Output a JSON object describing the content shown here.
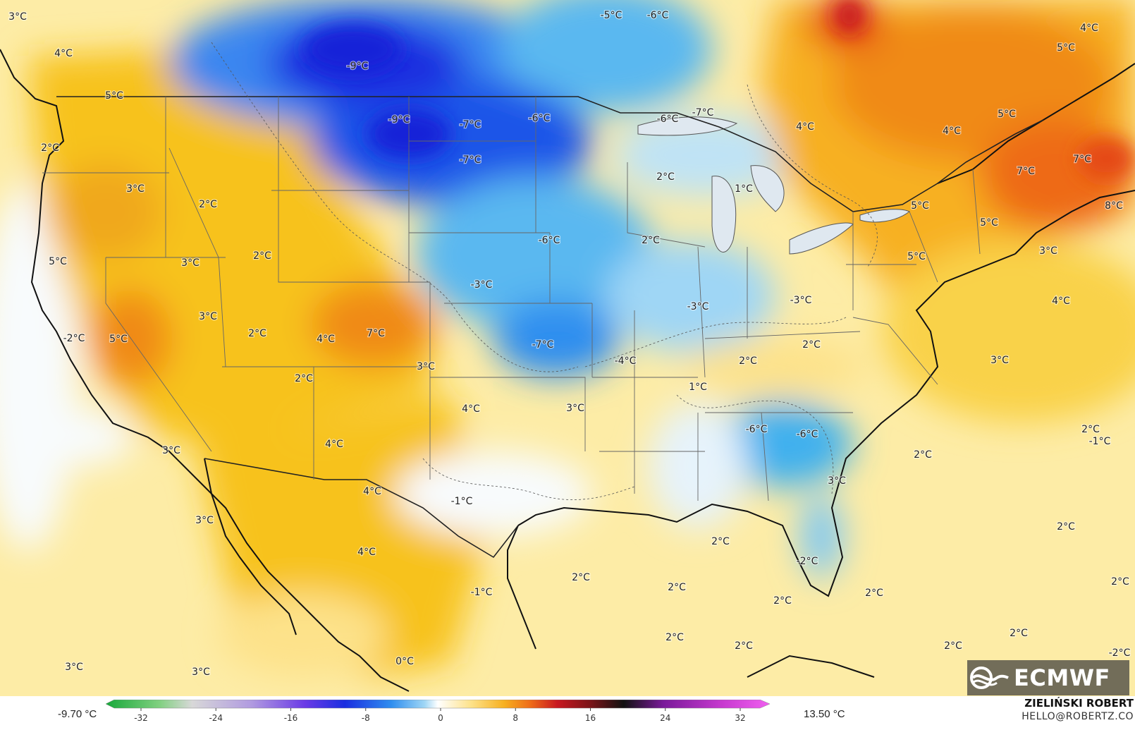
{
  "colors": {
    "ocean_warm": "#fdeca6",
    "land_warm": "#f7c21a",
    "hot": "#f08a18",
    "very_hot": "#e54a18",
    "extreme_hot": "#c81820",
    "neutral": "#f8fbfd",
    "cool": "#bfe3f5",
    "cold": "#3fb0ee",
    "very_cold": "#1f6cf0",
    "extreme_cold": "#1a2ee0",
    "border": "#111111",
    "state_line": "#666666"
  },
  "map": {
    "labels": [
      {
        "id": "l1",
        "text": "3°C"
      },
      {
        "id": "l2",
        "text": "4°C"
      },
      {
        "id": "l3",
        "text": "5°C"
      },
      {
        "id": "l4",
        "text": "-9°C"
      },
      {
        "id": "l5",
        "text": "-5°C"
      },
      {
        "id": "l6",
        "text": "-6°C"
      },
      {
        "id": "l7",
        "text": "4°C"
      },
      {
        "id": "l8",
        "text": "5°C"
      },
      {
        "id": "l9",
        "text": "-9°C"
      },
      {
        "id": "l10",
        "text": "-7°C"
      },
      {
        "id": "l11",
        "text": "-6°C"
      },
      {
        "id": "l12",
        "text": "-6°C"
      },
      {
        "id": "l13",
        "text": "-7°C"
      },
      {
        "id": "l14",
        "text": "4°C"
      },
      {
        "id": "l15",
        "text": "4°C"
      },
      {
        "id": "l16",
        "text": "5°C"
      },
      {
        "id": "l17",
        "text": "2°C"
      },
      {
        "id": "l18",
        "text": "-7°C"
      },
      {
        "id": "l19",
        "text": "7°C"
      },
      {
        "id": "l20",
        "text": "7°C"
      },
      {
        "id": "l21",
        "text": "3°C"
      },
      {
        "id": "l22",
        "text": "2°C"
      },
      {
        "id": "l23",
        "text": "2°C"
      },
      {
        "id": "l24",
        "text": "1°C"
      },
      {
        "id": "l25",
        "text": "5°C"
      },
      {
        "id": "l26",
        "text": "8°C"
      },
      {
        "id": "l27",
        "text": "5°C"
      },
      {
        "id": "l28",
        "text": "5°C"
      },
      {
        "id": "l29",
        "text": "2°C"
      },
      {
        "id": "l30",
        "text": "-6°C"
      },
      {
        "id": "l31",
        "text": "2°C"
      },
      {
        "id": "l32",
        "text": "5°C"
      },
      {
        "id": "l33",
        "text": "3°C"
      },
      {
        "id": "l34",
        "text": "3°C"
      },
      {
        "id": "l35",
        "text": "-3°C"
      },
      {
        "id": "l36",
        "text": "-3°C"
      },
      {
        "id": "l37",
        "text": "-3°C"
      },
      {
        "id": "l38",
        "text": "4°C"
      },
      {
        "id": "l39",
        "text": "-2°C"
      },
      {
        "id": "l40",
        "text": "5°C"
      },
      {
        "id": "l41",
        "text": "3°C"
      },
      {
        "id": "l42",
        "text": "4°C"
      },
      {
        "id": "l43",
        "text": "7°C"
      },
      {
        "id": "l44",
        "text": "-7°C"
      },
      {
        "id": "l45",
        "text": "-4°C"
      },
      {
        "id": "l46",
        "text": "2°C"
      },
      {
        "id": "l47",
        "text": "2°C"
      },
      {
        "id": "l48",
        "text": "3°C"
      },
      {
        "id": "l49",
        "text": "2°C"
      },
      {
        "id": "l50",
        "text": "3°C"
      },
      {
        "id": "l51",
        "text": "1°C"
      },
      {
        "id": "l52",
        "text": "4°C"
      },
      {
        "id": "l53",
        "text": "3°C"
      },
      {
        "id": "l54",
        "text": "-6°C"
      },
      {
        "id": "l55",
        "text": "-6°C"
      },
      {
        "id": "l56",
        "text": "3°C"
      },
      {
        "id": "l57",
        "text": "4°C"
      },
      {
        "id": "l58",
        "text": "2°C"
      },
      {
        "id": "l59",
        "text": "3°C"
      },
      {
        "id": "l60",
        "text": "-1°C"
      },
      {
        "id": "l61",
        "text": "4°C"
      },
      {
        "id": "l62",
        "text": "3°C"
      },
      {
        "id": "l63",
        "text": "2°C"
      },
      {
        "id": "l64",
        "text": "4°C"
      },
      {
        "id": "l65",
        "text": "-1°C"
      },
      {
        "id": "l66",
        "text": "2°C"
      },
      {
        "id": "l67",
        "text": "-1°C"
      },
      {
        "id": "l68",
        "text": "-2°C"
      },
      {
        "id": "l69",
        "text": "2°C"
      },
      {
        "id": "l70",
        "text": "2°C"
      },
      {
        "id": "l71",
        "text": "2°C"
      },
      {
        "id": "l72",
        "text": "2°C"
      },
      {
        "id": "l73",
        "text": "2°C"
      },
      {
        "id": "l74",
        "text": "2°C"
      },
      {
        "id": "l75",
        "text": "2°C"
      },
      {
        "id": "l76",
        "text": "2°C"
      },
      {
        "id": "l77",
        "text": "2°C"
      },
      {
        "id": "l78",
        "text": "2°C"
      },
      {
        "id": "l79",
        "text": "0°C"
      },
      {
        "id": "l80",
        "text": "3°C"
      },
      {
        "id": "l81",
        "text": "3°C"
      },
      {
        "id": "l82",
        "text": "-2°C"
      },
      {
        "id": "l83",
        "text": "2°C"
      }
    ]
  },
  "colorbar": {
    "min_label": "-9.70 °C",
    "max_label": "13.50 °C",
    "ticks": [
      "-32",
      "-24",
      "-16",
      "-8",
      "0",
      "8",
      "16",
      "24",
      "32"
    ]
  },
  "credits": {
    "author": "ZIELIŃSKI ROBERT",
    "email": "HELLO@ROBERTZ.CO",
    "logo_text": "ECMWF"
  },
  "icons": {
    "logo": "ecmwf-logo-icon"
  }
}
